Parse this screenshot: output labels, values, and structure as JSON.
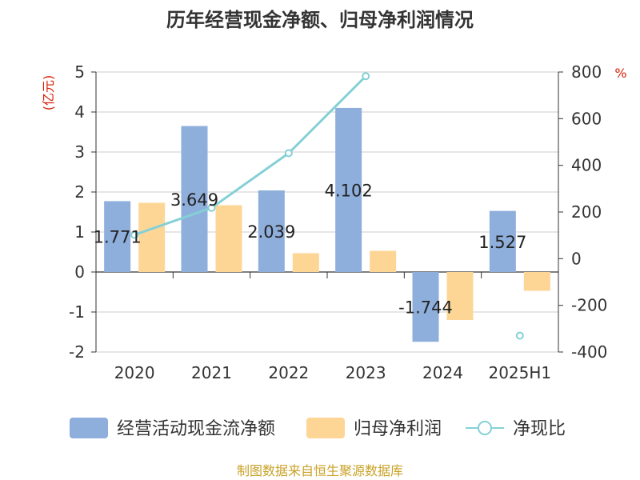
{
  "title": "历年经营现金净额、归母净利润情况",
  "left_axis_unit": "(亿元)",
  "right_axis_unit": "%",
  "source_text": "制图数据来自恒生聚源数据库",
  "colors": {
    "ocf": "#8eaedb",
    "profit": "#fdd696",
    "ratio": "#84d0d6",
    "axis": "#333333",
    "grid": "#cccccc",
    "unit": "#d81e06"
  },
  "chart_data": {
    "type": "bar",
    "title": "历年经营现金净额、归母净利润情况",
    "categories": [
      "2020",
      "2021",
      "2022",
      "2023",
      "2024",
      "2025H1"
    ],
    "series": [
      {
        "name": "经营活动现金流净额",
        "type": "bar",
        "axis": "left",
        "values": [
          1.771,
          3.649,
          2.039,
          4.102,
          -1.744,
          1.527
        ],
        "labels": [
          "1.771",
          "3.649",
          "2.039",
          "4.102",
          "-1.744",
          "1.527"
        ]
      },
      {
        "name": "归母净利润",
        "type": "bar",
        "axis": "left",
        "values": [
          1.73,
          1.67,
          0.47,
          0.53,
          -1.2,
          -0.47
        ]
      },
      {
        "name": "净现比",
        "type": "line",
        "axis": "right",
        "values": [
          102,
          218,
          452,
          782,
          null,
          -330
        ]
      }
    ],
    "left_axis": {
      "ylim": [
        -2,
        5
      ],
      "ticks": [
        5,
        4,
        3,
        2,
        1,
        0,
        -1,
        -2
      ]
    },
    "right_axis": {
      "ylim": [
        -400,
        800
      ],
      "ticks": [
        800,
        600,
        400,
        200,
        0,
        -200,
        -400
      ]
    },
    "grid": true,
    "legend_position": "bottom"
  }
}
